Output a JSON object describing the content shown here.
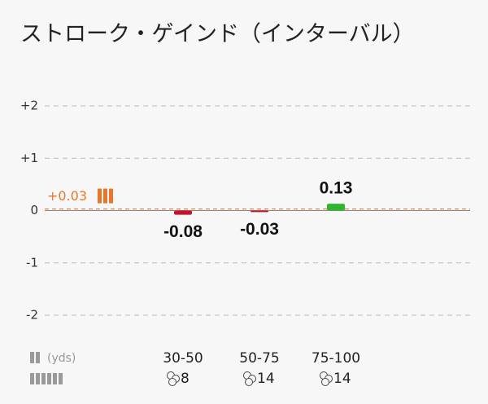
{
  "chart_data": {
    "type": "bar",
    "title": "ストローク・ゲインド（インターバル）",
    "categories": [
      "30-50",
      "50-75",
      "75-100"
    ],
    "values": [
      -0.08,
      -0.03,
      0.13
    ],
    "positive_color": "#2fb52f",
    "negative_color": "#c8102e",
    "x_label": "(yds)",
    "counts": [
      8,
      14,
      14
    ],
    "reference_line": {
      "value": 0.03,
      "label": "+0.03",
      "color": "#e8772e"
    },
    "ylim": [
      -2,
      2
    ],
    "yticks": [
      {
        "value": 2,
        "label": "+2"
      },
      {
        "value": 1,
        "label": "+1"
      },
      0,
      -1,
      -2
    ],
    "grid": true
  }
}
